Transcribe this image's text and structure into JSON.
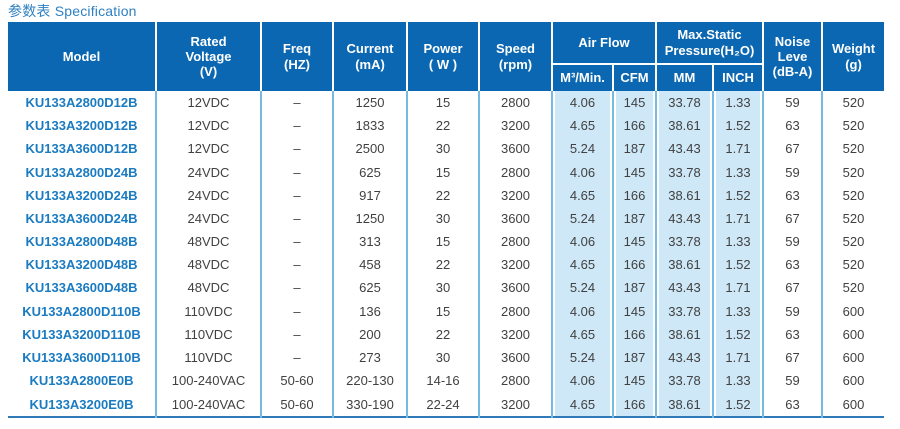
{
  "title": "参数表 Specification",
  "colors": {
    "header_bg": "#0b67b1",
    "header_text": "#ffffff",
    "shade_bg": "#cfe8f7",
    "model_text": "#1a7bc1",
    "data_text": "#414141",
    "data_separator": "#74bae2",
    "bottom_rule": "#2e79b8",
    "title_text": "#2e80c2"
  },
  "table": {
    "headers": {
      "model": "Model",
      "rated_voltage": "Rated\nVoltage\n(V)",
      "freq": "Freq\n(HZ)",
      "current": "Current\n(mA)",
      "power": "Power\n( W )",
      "speed": "Speed\n(rpm)",
      "air_flow": "Air Flow",
      "air_flow_m3": "M³/Min.",
      "air_flow_cfm": "CFM",
      "max_static": "Max.Static\nPressure(H₂O)",
      "max_static_mm": "MM",
      "max_static_inch": "INCH",
      "noise": "Noise\nLeve\n(dB-A)",
      "weight": "Weight\n(g)"
    },
    "rows": [
      [
        "KU133A2800D12B",
        "12VDC",
        "–",
        "1250",
        "15",
        "2800",
        "4.06",
        "145",
        "33.78",
        "1.33",
        "59",
        "520"
      ],
      [
        "KU133A3200D12B",
        "12VDC",
        "–",
        "1833",
        "22",
        "3200",
        "4.65",
        "166",
        "38.61",
        "1.52",
        "63",
        "520"
      ],
      [
        "KU133A3600D12B",
        "12VDC",
        "–",
        "2500",
        "30",
        "3600",
        "5.24",
        "187",
        "43.43",
        "1.71",
        "67",
        "520"
      ],
      [
        "KU133A2800D24B",
        "24VDC",
        "–",
        "625",
        "15",
        "2800",
        "4.06",
        "145",
        "33.78",
        "1.33",
        "59",
        "520"
      ],
      [
        "KU133A3200D24B",
        "24VDC",
        "–",
        "917",
        "22",
        "3200",
        "4.65",
        "166",
        "38.61",
        "1.52",
        "63",
        "520"
      ],
      [
        "KU133A3600D24B",
        "24VDC",
        "–",
        "1250",
        "30",
        "3600",
        "5.24",
        "187",
        "43.43",
        "1.71",
        "67",
        "520"
      ],
      [
        "KU133A2800D48B",
        "48VDC",
        "–",
        "313",
        "15",
        "2800",
        "4.06",
        "145",
        "33.78",
        "1.33",
        "59",
        "520"
      ],
      [
        "KU133A3200D48B",
        "48VDC",
        "–",
        "458",
        "22",
        "3200",
        "4.65",
        "166",
        "38.61",
        "1.52",
        "63",
        "520"
      ],
      [
        "KU133A3600D48B",
        "48VDC",
        "–",
        "625",
        "30",
        "3600",
        "5.24",
        "187",
        "43.43",
        "1.71",
        "67",
        "520"
      ],
      [
        "KU133A2800D110B",
        "110VDC",
        "–",
        "136",
        "15",
        "2800",
        "4.06",
        "145",
        "33.78",
        "1.33",
        "59",
        "600"
      ],
      [
        "KU133A3200D110B",
        "110VDC",
        "–",
        "200",
        "22",
        "3200",
        "4.65",
        "166",
        "38.61",
        "1.52",
        "63",
        "600"
      ],
      [
        "KU133A3600D110B",
        "110VDC",
        "–",
        "273",
        "30",
        "3600",
        "5.24",
        "187",
        "43.43",
        "1.71",
        "67",
        "600"
      ],
      [
        "KU133A2800E0B",
        "100-240VAC",
        "50-60",
        "220-130",
        "14-16",
        "2800",
        "4.06",
        "145",
        "33.78",
        "1.33",
        "59",
        "600"
      ],
      [
        "KU133A3200E0B",
        "100-240VAC",
        "50-60",
        "330-190",
        "22-24",
        "3200",
        "4.65",
        "166",
        "38.61",
        "1.52",
        "63",
        "600"
      ]
    ]
  }
}
